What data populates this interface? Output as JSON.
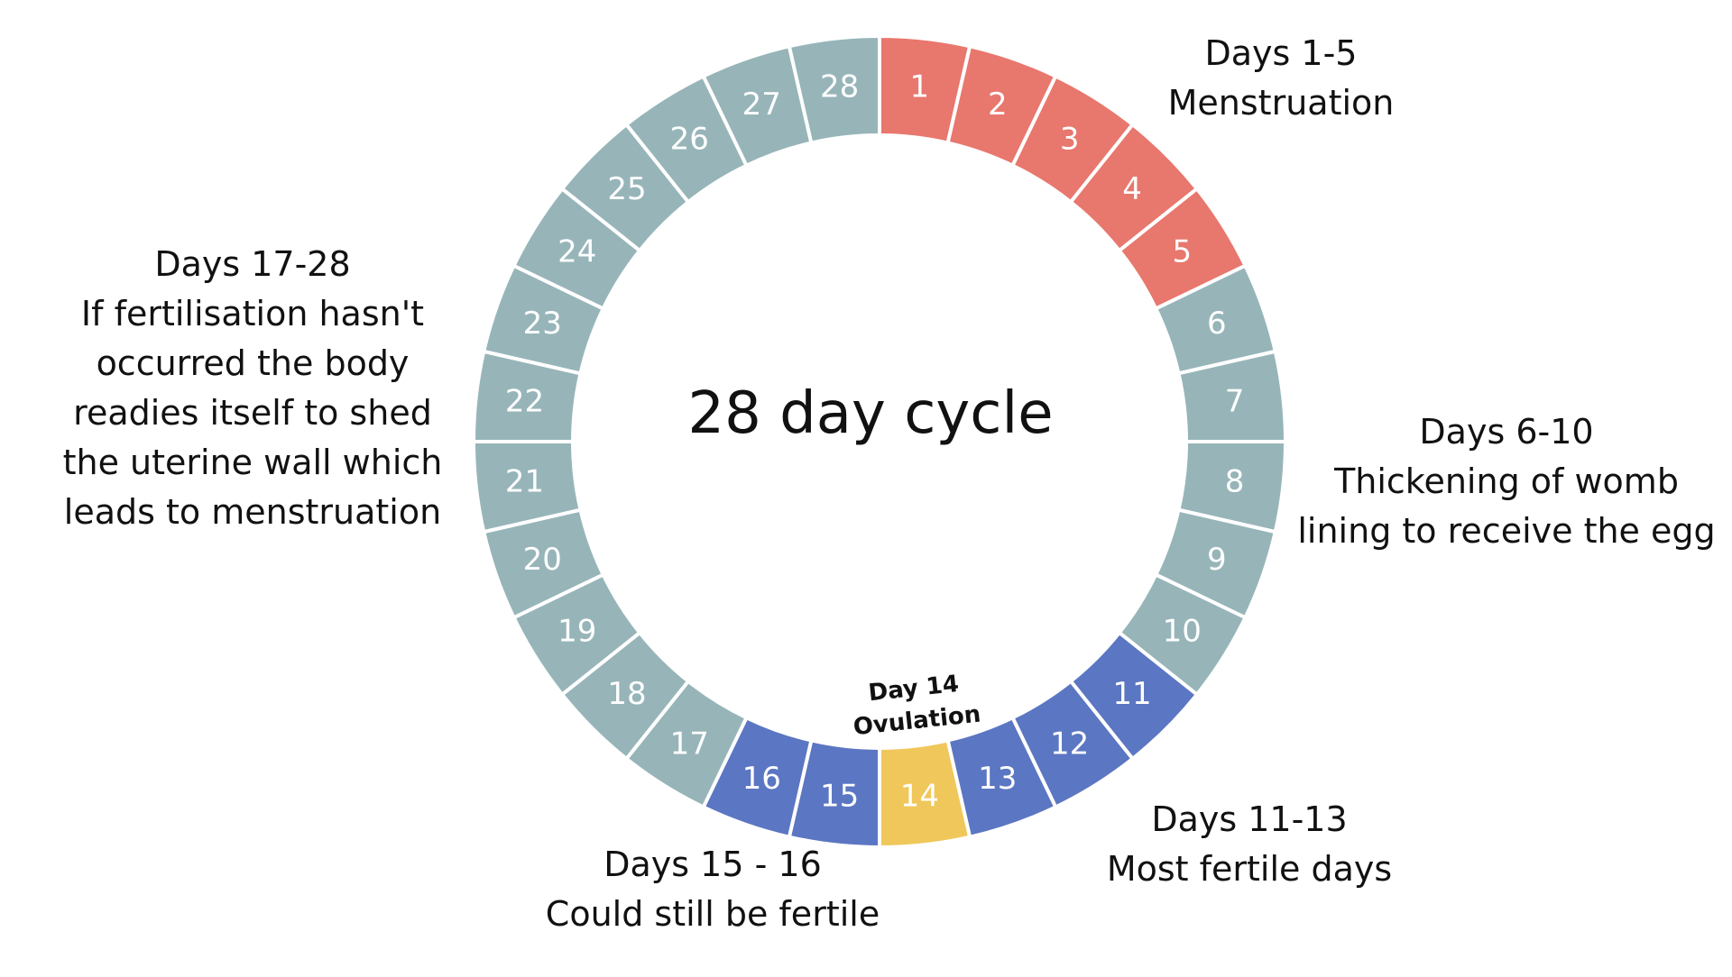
{
  "diagram": {
    "center_title": "28 day cycle",
    "days": [
      {
        "day": "1",
        "phase": "menstruation"
      },
      {
        "day": "2",
        "phase": "menstruation"
      },
      {
        "day": "3",
        "phase": "menstruation"
      },
      {
        "day": "4",
        "phase": "menstruation"
      },
      {
        "day": "5",
        "phase": "menstruation"
      },
      {
        "day": "6",
        "phase": "other"
      },
      {
        "day": "7",
        "phase": "other"
      },
      {
        "day": "8",
        "phase": "other"
      },
      {
        "day": "9",
        "phase": "other"
      },
      {
        "day": "10",
        "phase": "other"
      },
      {
        "day": "11",
        "phase": "fertile"
      },
      {
        "day": "12",
        "phase": "fertile"
      },
      {
        "day": "13",
        "phase": "fertile"
      },
      {
        "day": "14",
        "phase": "ovulation"
      },
      {
        "day": "15",
        "phase": "fertile"
      },
      {
        "day": "16",
        "phase": "fertile"
      },
      {
        "day": "17",
        "phase": "other"
      },
      {
        "day": "18",
        "phase": "other"
      },
      {
        "day": "19",
        "phase": "other"
      },
      {
        "day": "20",
        "phase": "other"
      },
      {
        "day": "21",
        "phase": "other"
      },
      {
        "day": "22",
        "phase": "other"
      },
      {
        "day": "23",
        "phase": "other"
      },
      {
        "day": "24",
        "phase": "other"
      },
      {
        "day": "25",
        "phase": "other"
      },
      {
        "day": "26",
        "phase": "other"
      },
      {
        "day": "27",
        "phase": "other"
      },
      {
        "day": "28",
        "phase": "other"
      }
    ],
    "colors": {
      "menstruation": "#e8776d",
      "other": "#97b5b9",
      "fertile": "#5b76c2",
      "ovulation": "#f0c75a",
      "separator": "#ffffff",
      "day_text": "#ffffff"
    },
    "ovulation_label": {
      "line1": "Day 14",
      "line2": "Ovulation"
    }
  },
  "annotations": {
    "menstruation": {
      "line1": "Days 1-5",
      "line2": "Menstruation"
    },
    "luteal": {
      "line1": "Days 17-28",
      "line2": "If fertilisation hasn't",
      "line3": "occurred the body",
      "line4": "readies itself to shed",
      "line5": "the uterine wall which",
      "line6": "leads to menstruation"
    },
    "thickening": {
      "line1": "Days 6-10",
      "line2": "Thickening of womb",
      "line3": "lining to receive the egg"
    },
    "fertile": {
      "line1": "Days 11-13",
      "line2": "Most fertile days"
    },
    "still_fertile": {
      "line1": "Days 15 - 16",
      "line2": "Could still be fertile"
    }
  }
}
